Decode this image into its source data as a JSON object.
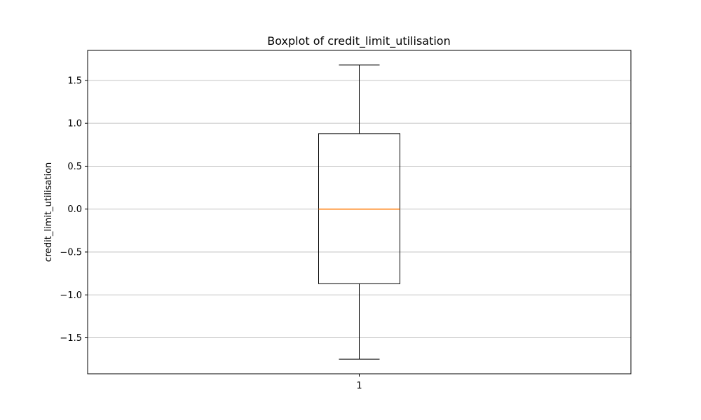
{
  "chart_data": {
    "type": "box",
    "title": "Boxplot of credit_limit_utilisation",
    "xlabel": "",
    "ylabel": "credit_limit_utilisation",
    "categories": [
      "1"
    ],
    "boxes": [
      {
        "category": "1",
        "whisker_low": -1.75,
        "q1": -0.87,
        "median": 0.0,
        "q3": 0.88,
        "whisker_high": 1.68
      }
    ],
    "y_ticks": [
      -1.5,
      -1.0,
      -0.5,
      0.0,
      0.5,
      1.0,
      1.5
    ],
    "y_tick_labels": [
      "−1.5",
      "−1.0",
      "−0.5",
      "0.0",
      "0.5",
      "1.0",
      "1.5"
    ],
    "ylim": [
      -1.92,
      1.85
    ],
    "xlim": [
      0.5,
      1.5
    ],
    "grid": {
      "y": true,
      "x": false
    },
    "colors": {
      "box": "#000000",
      "median": "#ff7f0e",
      "whisker": "#000000",
      "grid": "#c4c4c4",
      "frame": "#000000"
    }
  }
}
